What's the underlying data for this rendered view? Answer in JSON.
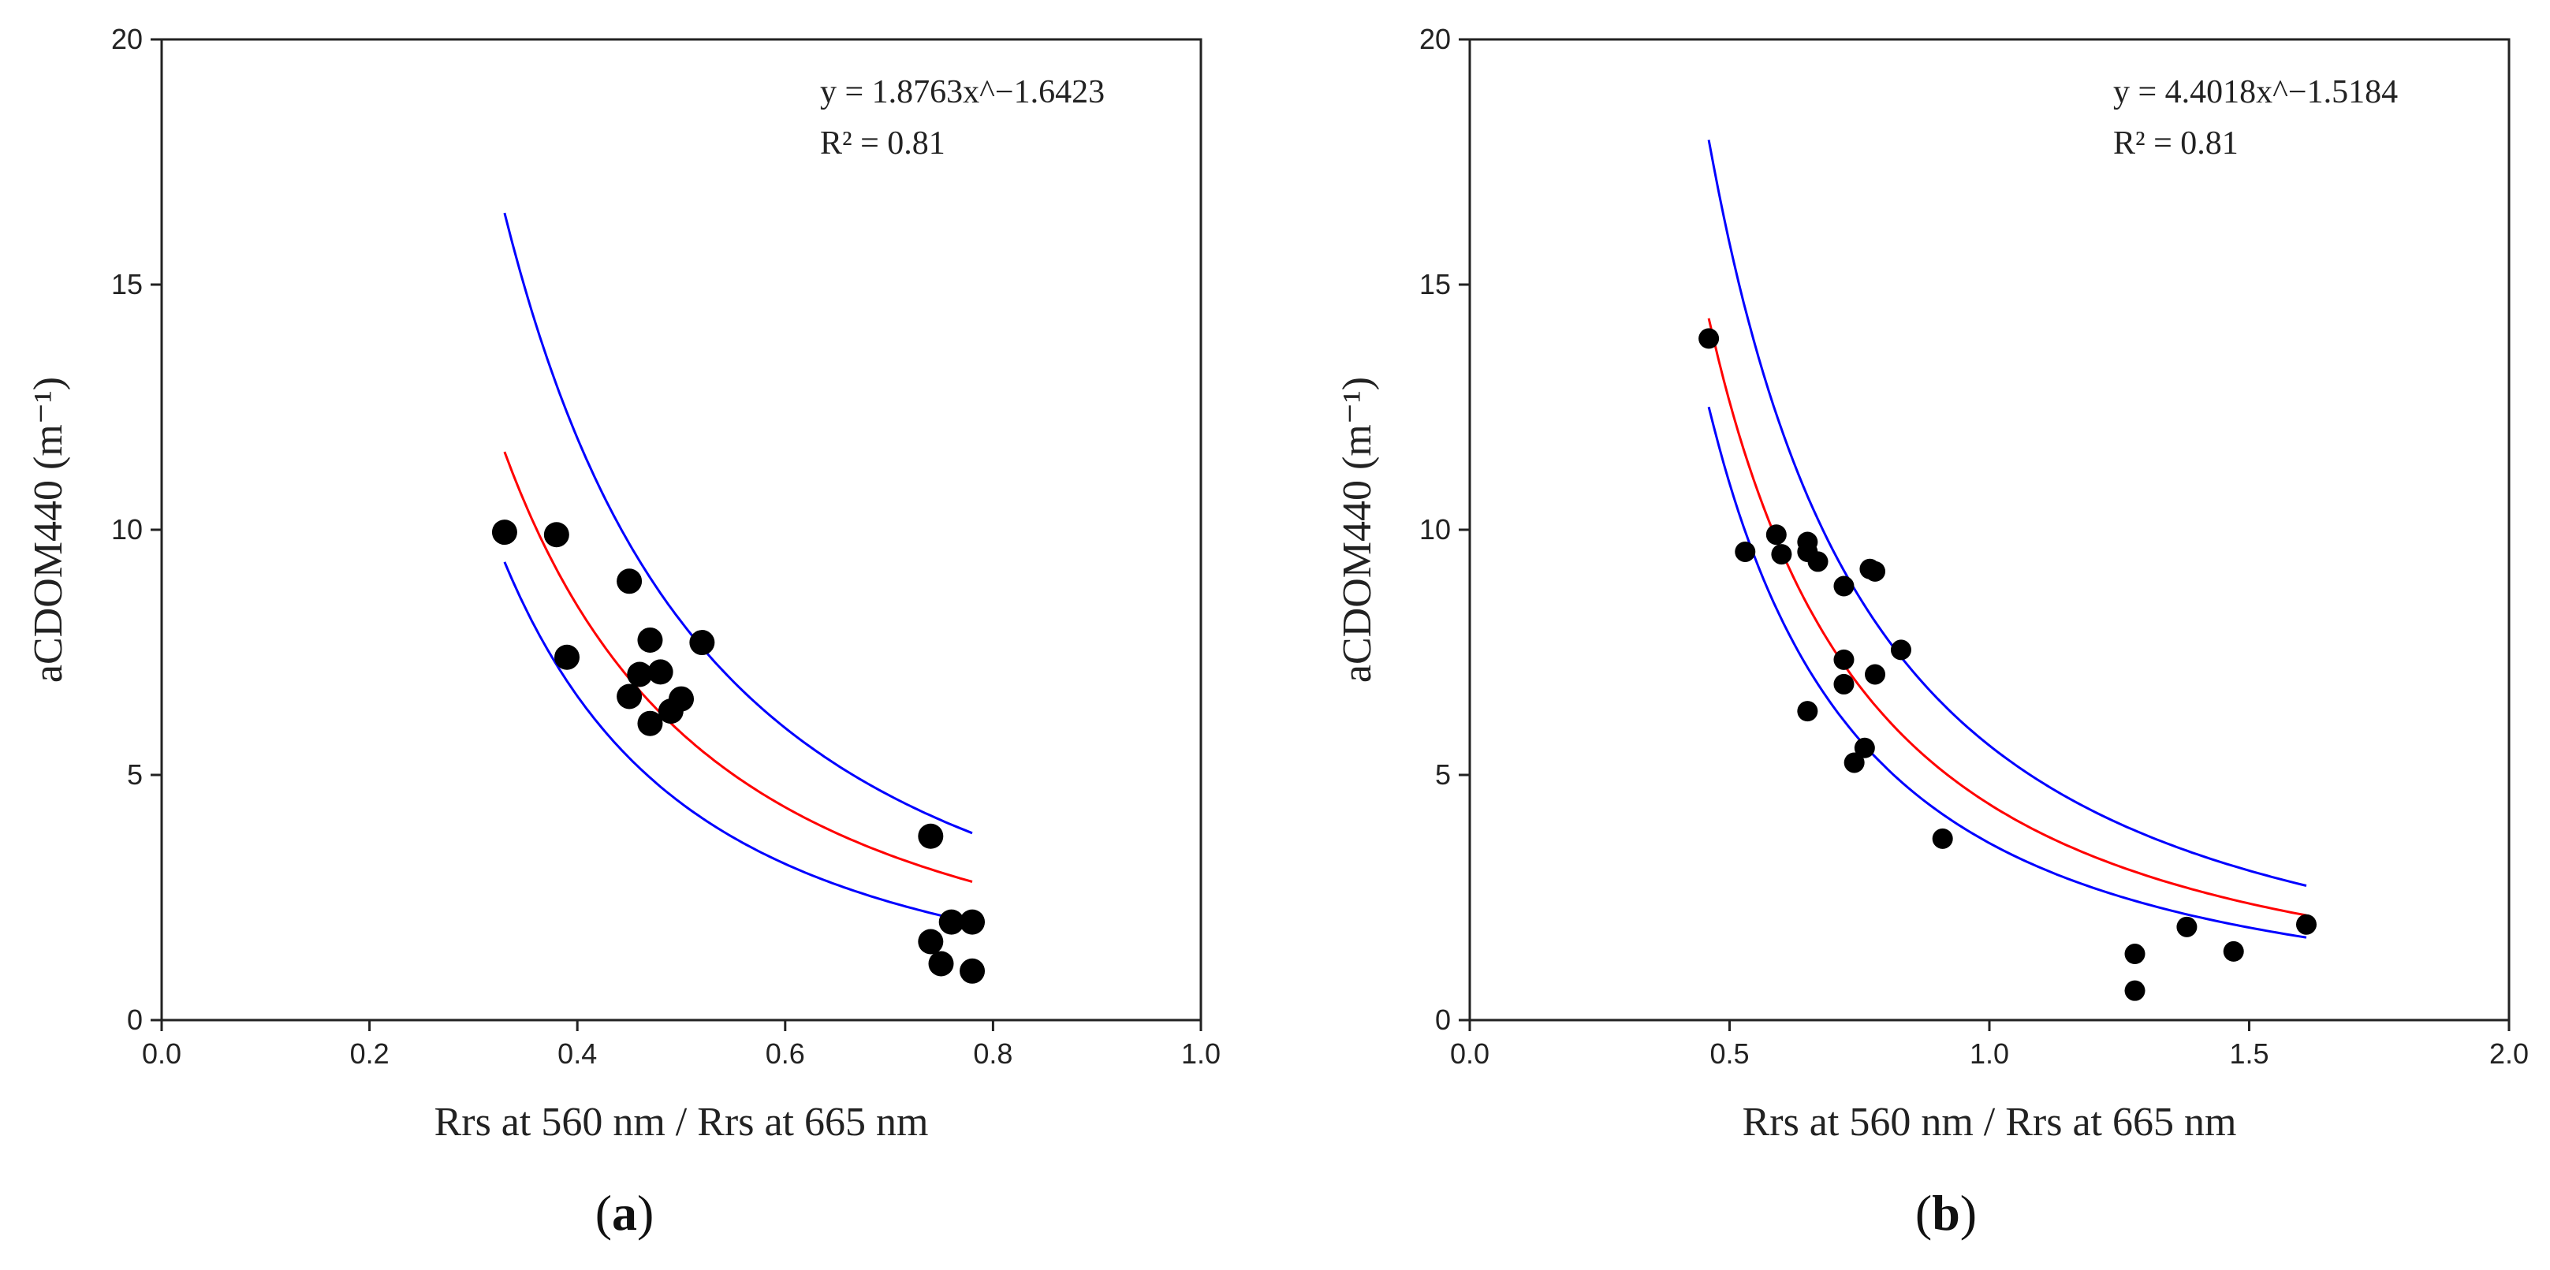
{
  "colors": {
    "fit": "#ff0000",
    "ci": "#0000ff",
    "points": "#000000",
    "axis": "#222222"
  },
  "chart_data": [
    {
      "type": "scatter",
      "panel_label": "a",
      "xlabel": "Rrs at 560 nm / Rrs at 665 nm",
      "ylabel": "aCDOM440 (m⁻¹)",
      "xlim": [
        0,
        1
      ],
      "ylim": [
        0,
        20
      ],
      "xticks": [
        "0.0",
        "0.2",
        "0.4",
        "0.6",
        "0.8",
        "1.0"
      ],
      "yticks": [
        "0",
        "5",
        "10",
        "15",
        "20"
      ],
      "equation": "y = 1.8763x^−1.6423",
      "r2": "R² = 0.81",
      "fit": {
        "a": 1.8763,
        "b": -1.6423,
        "x_range": [
          0.33,
          0.78
        ]
      },
      "ci_upper": {
        "a": 2.5,
        "b": -1.7,
        "x_range": [
          0.33,
          0.78
        ]
      },
      "ci_lower": {
        "a": 1.27,
        "b": -1.8,
        "x_range": [
          0.33,
          0.78
        ]
      },
      "points": [
        [
          0.33,
          9.95
        ],
        [
          0.38,
          9.9
        ],
        [
          0.39,
          7.4
        ],
        [
          0.45,
          8.95
        ],
        [
          0.45,
          6.6
        ],
        [
          0.46,
          7.05
        ],
        [
          0.47,
          7.75
        ],
        [
          0.47,
          6.05
        ],
        [
          0.48,
          7.1
        ],
        [
          0.49,
          6.3
        ],
        [
          0.5,
          6.55
        ],
        [
          0.52,
          7.7
        ],
        [
          0.74,
          3.75
        ],
        [
          0.74,
          1.6
        ],
        [
          0.75,
          1.15
        ],
        [
          0.76,
          2.0
        ],
        [
          0.78,
          2.0
        ],
        [
          0.78,
          1.0
        ]
      ]
    },
    {
      "type": "scatter",
      "panel_label": "b",
      "xlabel": "Rrs at 560 nm / Rrs at 665 nm",
      "ylabel": "aCDOM440 (m⁻¹)",
      "xlim": [
        0,
        2
      ],
      "ylim": [
        0,
        20
      ],
      "xticks": [
        "0.0",
        "0.5",
        "1.0",
        "1.5",
        "2.0"
      ],
      "yticks": [
        "0",
        "5",
        "10",
        "15",
        "20"
      ],
      "equation": "y = 4.4018x^−1.5184",
      "r2": "R² = 0.81",
      "fit": {
        "a": 4.4018,
        "b": -1.5184,
        "x_range": [
          0.46,
          1.61
        ]
      },
      "ci_upper": {
        "a": 5.6,
        "b": -1.5,
        "x_range": [
          0.46,
          1.61
        ]
      },
      "ci_lower": {
        "a": 3.61,
        "b": -1.6,
        "x_range": [
          0.46,
          1.61
        ]
      },
      "points": [
        [
          0.46,
          13.9
        ],
        [
          0.53,
          9.55
        ],
        [
          0.59,
          9.9
        ],
        [
          0.6,
          9.5
        ],
        [
          0.65,
          9.75
        ],
        [
          0.65,
          9.55
        ],
        [
          0.67,
          9.35
        ],
        [
          0.72,
          8.85
        ],
        [
          0.77,
          9.2
        ],
        [
          0.78,
          9.15
        ],
        [
          0.72,
          7.35
        ],
        [
          0.72,
          6.85
        ],
        [
          0.78,
          7.05
        ],
        [
          0.83,
          7.55
        ],
        [
          0.65,
          6.3
        ],
        [
          0.74,
          5.25
        ],
        [
          0.76,
          5.55
        ],
        [
          0.91,
          3.7
        ],
        [
          1.28,
          1.35
        ],
        [
          1.28,
          0.6
        ],
        [
          1.38,
          1.9
        ],
        [
          1.47,
          1.4
        ],
        [
          1.61,
          1.95
        ]
      ]
    }
  ]
}
